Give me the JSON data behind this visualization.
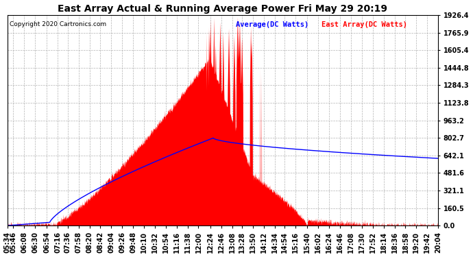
{
  "title": "East Array Actual & Running Average Power Fri May 29 20:19",
  "copyright": "Copyright 2020 Cartronics.com",
  "legend_avg": "Average(DC Watts)",
  "legend_east": "East Array(DC Watts)",
  "ymin": 0.0,
  "ymax": 1926.4,
  "yticks": [
    0.0,
    160.5,
    321.1,
    481.6,
    642.1,
    802.7,
    963.2,
    1123.8,
    1284.3,
    1444.8,
    1605.4,
    1765.9,
    1926.4
  ],
  "bg_color": "#ffffff",
  "plot_bg_color": "#ffffff",
  "grid_color": "#aaaaaa",
  "fill_color": "#ff0000",
  "line_color": "#0000ff",
  "title_color": "#000000",
  "copyright_color": "#000000",
  "legend_avg_color": "#0000ff",
  "legend_east_color": "#ff0000",
  "xtick_labels": [
    "05:34",
    "05:46",
    "06:08",
    "06:30",
    "06:54",
    "07:16",
    "07:36",
    "07:58",
    "08:20",
    "08:42",
    "09:04",
    "09:26",
    "09:48",
    "10:10",
    "10:32",
    "10:54",
    "11:16",
    "11:38",
    "12:00",
    "12:24",
    "12:46",
    "13:08",
    "13:28",
    "13:50",
    "14:12",
    "14:34",
    "14:54",
    "15:16",
    "15:40",
    "16:02",
    "16:24",
    "16:46",
    "17:08",
    "17:30",
    "17:52",
    "18:14",
    "18:36",
    "18:58",
    "19:20",
    "19:42",
    "20:04"
  ]
}
